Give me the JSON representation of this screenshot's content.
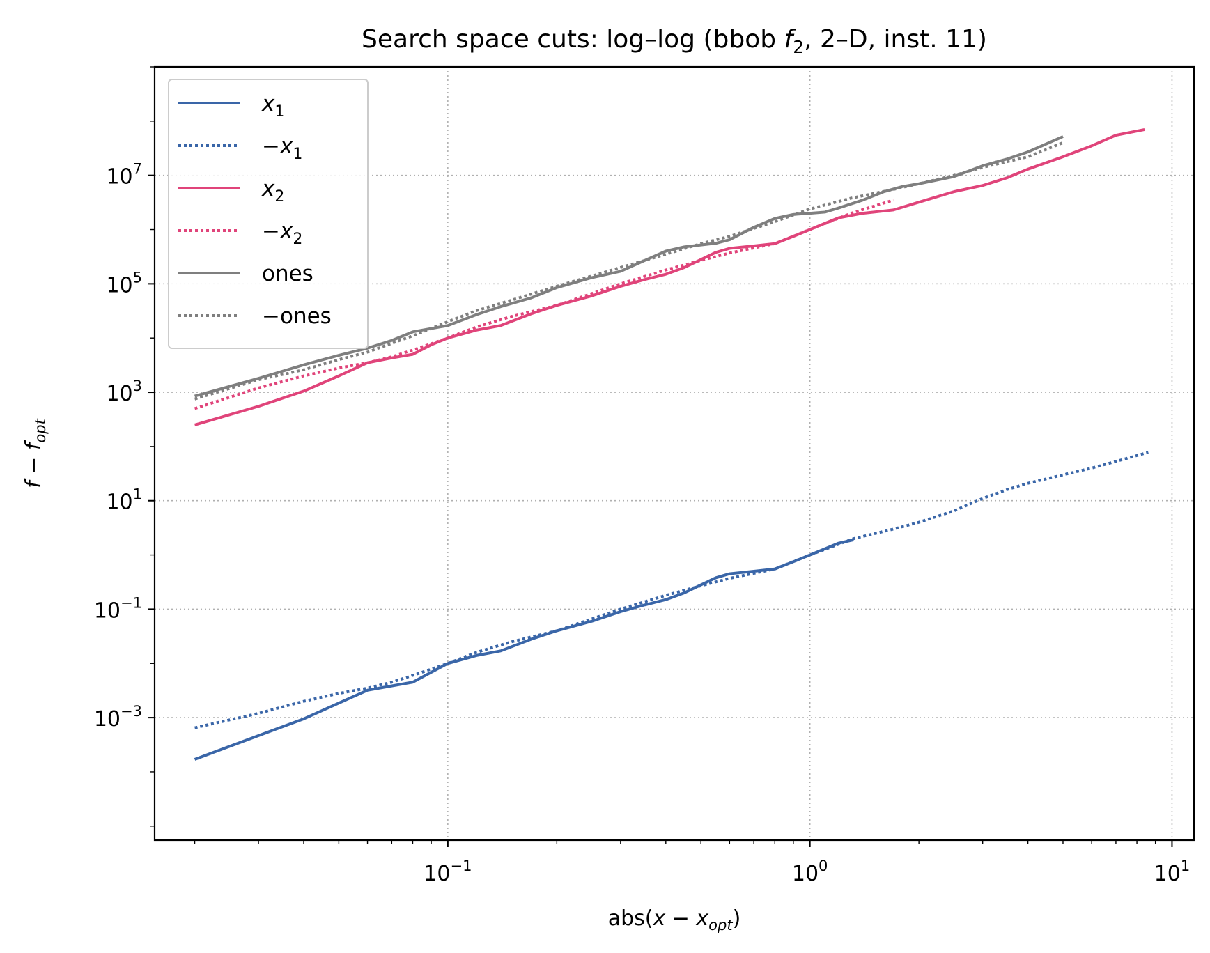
{
  "chart_data": {
    "type": "line",
    "title": {
      "pre": "Search space cuts: log–log (bbob ",
      "var": "f",
      "sub": "2",
      "post": ", 2–D, inst. 11)"
    },
    "xlabel": {
      "pre": "abs(",
      "main": "x − x",
      "sub": "opt",
      "post": ")"
    },
    "ylabel": {
      "main": "f − f",
      "sub": "opt"
    },
    "x_scale": "log",
    "y_scale": "log",
    "xlim": [
      0.0155,
      11.5
    ],
    "ylim": [
      5.5e-06,
      1000000000
    ],
    "grid": true,
    "legend_position": "top-left",
    "x_ticks": [
      {
        "base": "10",
        "exp": "−1",
        "value": 0.1
      },
      {
        "base": "10",
        "exp": "0",
        "value": 1
      },
      {
        "base": "10",
        "exp": "1",
        "value": 10
      }
    ],
    "y_ticks": [
      {
        "base": "10",
        "exp": "−3",
        "value": 0.001
      },
      {
        "base": "10",
        "exp": "−1",
        "value": 0.1
      },
      {
        "base": "10",
        "exp": "1",
        "value": 10
      },
      {
        "base": "10",
        "exp": "3",
        "value": 1000
      },
      {
        "base": "10",
        "exp": "5",
        "value": 100000
      },
      {
        "base": "10",
        "exp": "7",
        "value": 10000000
      }
    ],
    "series": [
      {
        "name": "x",
        "name_sub": "1",
        "name_prefix": "",
        "color": "#3a66a8",
        "style": "solid",
        "points": [
          [
            0.02,
            0.00017
          ],
          [
            0.04,
            0.00095
          ],
          [
            0.06,
            0.0032
          ],
          [
            0.08,
            0.0045
          ],
          [
            0.1,
            0.01
          ],
          [
            0.12,
            0.014
          ],
          [
            0.14,
            0.017
          ],
          [
            0.17,
            0.028
          ],
          [
            0.2,
            0.04
          ],
          [
            0.25,
            0.06
          ],
          [
            0.3,
            0.09
          ],
          [
            0.35,
            0.12
          ],
          [
            0.4,
            0.15
          ],
          [
            0.45,
            0.2
          ],
          [
            0.5,
            0.28
          ],
          [
            0.55,
            0.38
          ],
          [
            0.6,
            0.45
          ],
          [
            0.7,
            0.5
          ],
          [
            0.8,
            0.55
          ],
          [
            0.9,
            0.75
          ],
          [
            1.0,
            1.0
          ],
          [
            1.1,
            1.3
          ],
          [
            1.2,
            1.65
          ],
          [
            1.32,
            1.9
          ]
        ]
      },
      {
        "name": "x",
        "name_sub": "1",
        "name_prefix": "−",
        "color": "#3a66a8",
        "style": "dotted",
        "points": [
          [
            0.02,
            0.00065
          ],
          [
            0.03,
            0.0012
          ],
          [
            0.04,
            0.002
          ],
          [
            0.05,
            0.0028
          ],
          [
            0.06,
            0.0035
          ],
          [
            0.07,
            0.0045
          ],
          [
            0.08,
            0.006
          ],
          [
            0.1,
            0.01
          ],
          [
            0.12,
            0.016
          ],
          [
            0.15,
            0.025
          ],
          [
            0.2,
            0.04
          ],
          [
            0.3,
            0.1
          ],
          [
            0.4,
            0.18
          ],
          [
            0.5,
            0.27
          ],
          [
            0.6,
            0.37
          ],
          [
            0.8,
            0.55
          ],
          [
            1.0,
            1.0
          ],
          [
            1.32,
            2.0
          ],
          [
            1.7,
            3.0
          ],
          [
            2.0,
            4.0
          ],
          [
            2.5,
            6.5
          ],
          [
            3.0,
            11
          ],
          [
            3.5,
            16
          ],
          [
            4.0,
            21
          ],
          [
            5.0,
            30
          ],
          [
            6.0,
            40
          ],
          [
            7.0,
            53
          ],
          [
            8.6,
            78
          ]
        ]
      },
      {
        "name": "x",
        "name_sub": "2",
        "name_prefix": "",
        "color": "#e0447a",
        "style": "solid",
        "points": [
          [
            0.02,
            250
          ],
          [
            0.03,
            550
          ],
          [
            0.04,
            1050
          ],
          [
            0.05,
            2000
          ],
          [
            0.06,
            3500
          ],
          [
            0.07,
            4300
          ],
          [
            0.08,
            5000
          ],
          [
            0.09,
            7500
          ],
          [
            0.1,
            10000
          ],
          [
            0.12,
            14000
          ],
          [
            0.14,
            17000
          ],
          [
            0.17,
            28000
          ],
          [
            0.2,
            40000
          ],
          [
            0.25,
            60000
          ],
          [
            0.3,
            90000
          ],
          [
            0.35,
            120000
          ],
          [
            0.4,
            150000
          ],
          [
            0.45,
            200000
          ],
          [
            0.5,
            280000
          ],
          [
            0.55,
            380000
          ],
          [
            0.6,
            450000
          ],
          [
            0.7,
            500000
          ],
          [
            0.8,
            550000
          ],
          [
            0.9,
            750000
          ],
          [
            1.0,
            1000000
          ],
          [
            1.1,
            1300000
          ],
          [
            1.2,
            1650000
          ],
          [
            1.4,
            2000000
          ],
          [
            1.7,
            2300000
          ],
          [
            2.0,
            3200000
          ],
          [
            2.5,
            5000000
          ],
          [
            3.0,
            6500000
          ],
          [
            3.5,
            9000000
          ],
          [
            4.0,
            13000000
          ],
          [
            5.0,
            22000000
          ],
          [
            6.0,
            35000000
          ],
          [
            7.0,
            55000000
          ],
          [
            8.4,
            70000000
          ]
        ]
      },
      {
        "name": "x",
        "name_sub": "2",
        "name_prefix": "−",
        "color": "#e0447a",
        "style": "dotted",
        "points": [
          [
            0.02,
            500
          ],
          [
            0.03,
            1200
          ],
          [
            0.04,
            2000
          ],
          [
            0.05,
            2800
          ],
          [
            0.06,
            3500
          ],
          [
            0.07,
            4500
          ],
          [
            0.08,
            6000
          ],
          [
            0.1,
            10000
          ],
          [
            0.12,
            16000
          ],
          [
            0.15,
            25000
          ],
          [
            0.2,
            40000
          ],
          [
            0.3,
            100000
          ],
          [
            0.4,
            180000
          ],
          [
            0.5,
            270000
          ],
          [
            0.6,
            370000
          ],
          [
            0.8,
            550000
          ],
          [
            1.0,
            1000000
          ],
          [
            1.3,
            2000000
          ],
          [
            1.7,
            3500000
          ]
        ]
      },
      {
        "name": "ones",
        "name_sub": "",
        "name_prefix": "",
        "color": "#7f7f7f",
        "style": "solid",
        "points": [
          [
            0.02,
            850
          ],
          [
            0.03,
            1800
          ],
          [
            0.04,
            3200
          ],
          [
            0.05,
            4800
          ],
          [
            0.06,
            6500
          ],
          [
            0.07,
            9000
          ],
          [
            0.08,
            13000
          ],
          [
            0.1,
            17000
          ],
          [
            0.12,
            27000
          ],
          [
            0.14,
            38000
          ],
          [
            0.17,
            55000
          ],
          [
            0.2,
            85000
          ],
          [
            0.25,
            130000
          ],
          [
            0.3,
            170000
          ],
          [
            0.35,
            270000
          ],
          [
            0.4,
            400000
          ],
          [
            0.45,
            480000
          ],
          [
            0.5,
            520000
          ],
          [
            0.55,
            560000
          ],
          [
            0.6,
            650000
          ],
          [
            0.7,
            1100000
          ],
          [
            0.8,
            1600000
          ],
          [
            0.9,
            1900000
          ],
          [
            1.0,
            2000000
          ],
          [
            1.1,
            2100000
          ],
          [
            1.2,
            2500000
          ],
          [
            1.4,
            3500000
          ],
          [
            1.6,
            5000000
          ],
          [
            1.8,
            6200000
          ],
          [
            2.0,
            7000000
          ],
          [
            2.5,
            9500000
          ],
          [
            3.0,
            15000000
          ],
          [
            3.5,
            20000000
          ],
          [
            4.0,
            27000000
          ],
          [
            5.0,
            52000000
          ]
        ]
      },
      {
        "name": "ones",
        "name_sub": "",
        "name_prefix": "−",
        "color": "#7f7f7f",
        "style": "dotted",
        "points": [
          [
            0.02,
            750
          ],
          [
            0.03,
            1700
          ],
          [
            0.04,
            2600
          ],
          [
            0.05,
            4000
          ],
          [
            0.06,
            5500
          ],
          [
            0.08,
            11000
          ],
          [
            0.1,
            20000
          ],
          [
            0.12,
            32000
          ],
          [
            0.15,
            50000
          ],
          [
            0.2,
            90000
          ],
          [
            0.3,
            200000
          ],
          [
            0.4,
            350000
          ],
          [
            0.5,
            550000
          ],
          [
            0.6,
            750000
          ],
          [
            0.8,
            1400000
          ],
          [
            1.0,
            2400000
          ],
          [
            1.3,
            3800000
          ],
          [
            1.7,
            5500000
          ],
          [
            2.0,
            7000000
          ],
          [
            2.5,
            10000000
          ],
          [
            3.0,
            14000000
          ],
          [
            4.0,
            22000000
          ],
          [
            5.0,
            40000000
          ]
        ]
      }
    ]
  }
}
